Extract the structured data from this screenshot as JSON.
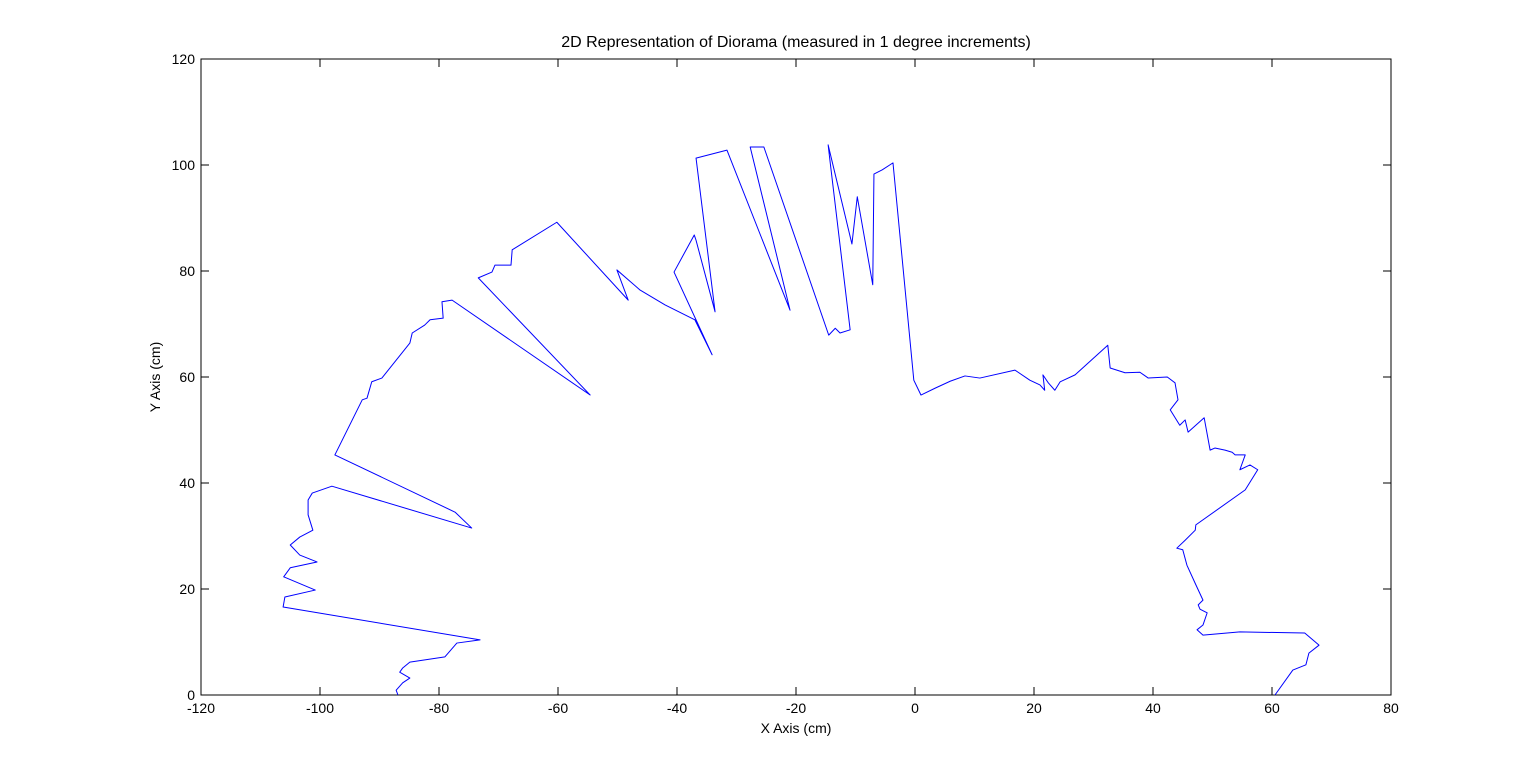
{
  "chart_data": {
    "type": "line",
    "title": "2D Representation of Diorama (measured in 1 degree increments)",
    "xlabel": "X Axis (cm)",
    "ylabel": "Y Axis (cm)",
    "xlim": [
      -120,
      80
    ],
    "ylim": [
      0,
      120
    ],
    "xticks": [
      -120,
      -100,
      -80,
      -60,
      -40,
      -20,
      0,
      20,
      40,
      60,
      80
    ],
    "yticks": [
      0,
      20,
      40,
      60,
      80,
      100,
      120
    ],
    "grid": false,
    "series": [
      {
        "color": "#0000ff",
        "x": [
          60.5,
          63.5,
          65.7,
          66.2,
          67.9,
          65.5,
          54.6,
          48.4,
          47.4,
          48.4,
          49.1,
          47.9,
          47.6,
          48.4,
          47.2,
          45.7,
          45.0,
          44.0,
          45.4,
          47.1,
          47.2,
          55.5,
          57.6,
          56.3,
          54.6,
          55.5,
          53.8,
          53.3,
          52.1,
          50.4,
          49.6,
          48.6,
          45.9,
          45.4,
          44.5,
          42.9,
          44.2,
          43.7,
          42.4,
          39.2,
          37.8,
          35.3,
          32.8,
          32.4,
          26.9,
          24.4,
          23.5,
          22.4,
          21.5,
          21.8,
          21.0,
          19.3,
          16.8,
          10.9,
          8.4,
          5.9,
          3.4,
          1.0,
          -0.2,
          -3.7,
          -5.5,
          -6.9,
          -7.1,
          -9.7,
          -10.6,
          -14.6,
          -14.3,
          -10.9,
          -12.6,
          -13.4,
          -14.5,
          -25.4,
          -27.7,
          -21.0,
          -31.6,
          -36.8,
          -33.6,
          -36.8,
          -37.1,
          -40.5,
          -34.1,
          -37.0,
          -42.0,
          -46.2,
          -50.1,
          -48.2,
          -60.2,
          -67.7,
          -67.9,
          -68.7,
          -70.6,
          -71.1,
          -73.4,
          -54.6,
          -77.8,
          -79.5,
          -79.3,
          -81.5,
          -82.4,
          -84.5,
          -84.9,
          -89.6,
          -91.3,
          -92.1,
          -92.9,
          -97.5,
          -77.3,
          -74.5,
          -98.0,
          -101.3,
          -102.0,
          -102.0,
          -101.2,
          -103.4,
          -105.0,
          -103.4,
          -100.5,
          -105.0,
          -106.1,
          -100.8,
          -105.9,
          -106.2,
          -73.1,
          -77.0,
          -79.0,
          -84.9,
          -86.1,
          -86.6,
          -84.9,
          -86.1,
          -87.2,
          -86.9
        ],
        "values": [
          0,
          4.7,
          5.7,
          7.9,
          9.4,
          11.7,
          11.9,
          11.3,
          12.3,
          13.2,
          15.5,
          16.2,
          17.0,
          17.9,
          20.8,
          24.5,
          27.4,
          27.7,
          29.2,
          31.1,
          32.1,
          38.7,
          42.5,
          43.4,
          42.5,
          45.3,
          45.3,
          45.8,
          46.2,
          46.6,
          46.2,
          52.3,
          49.6,
          51.9,
          50.9,
          53.8,
          55.7,
          58.9,
          60.0,
          59.8,
          60.9,
          60.8,
          61.7,
          66.0,
          60.4,
          59.1,
          57.5,
          58.9,
          60.4,
          57.5,
          58.5,
          59.4,
          61.3,
          59.8,
          60.2,
          59.2,
          57.9,
          56.6,
          59.4,
          100.4,
          99.1,
          98.3,
          77.4,
          94.0,
          85.1,
          103.8,
          100.9,
          68.9,
          68.3,
          69.2,
          67.9,
          103.4,
          103.4,
          72.6,
          102.8,
          101.3,
          72.3,
          85.8,
          86.8,
          79.8,
          64.2,
          70.8,
          73.6,
          76.4,
          80.2,
          74.5,
          89.2,
          84.0,
          81.1,
          81.1,
          81.1,
          79.8,
          78.7,
          56.6,
          74.5,
          74.2,
          71.1,
          70.8,
          69.8,
          68.3,
          66.4,
          59.8,
          59.1,
          56.0,
          55.7,
          45.3,
          34.5,
          31.5,
          39.4,
          38.1,
          36.8,
          34.0,
          31.1,
          29.8,
          28.3,
          26.4,
          25.1,
          24.0,
          22.3,
          19.8,
          18.5,
          16.6,
          10.4,
          9.8,
          7.2,
          6.2,
          5.1,
          4.3,
          3.2,
          2.3,
          0.9,
          0
        ]
      }
    ]
  }
}
